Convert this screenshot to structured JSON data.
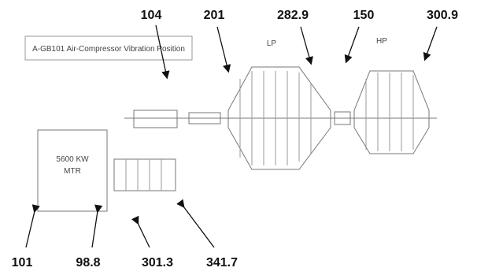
{
  "header": {
    "title": "A-GB101 Air-Compressor Vibration Position"
  },
  "sections": [
    {
      "label": "LP"
    },
    {
      "label": "HP"
    }
  ],
  "motor": {
    "lines": [
      "5600 KW",
      "MTR"
    ]
  },
  "top_labels": [
    "104",
    "201",
    "282.9",
    "150",
    "300.9"
  ],
  "bottom_labels": [
    "101",
    "98.8",
    "301.3",
    "341.7"
  ]
}
